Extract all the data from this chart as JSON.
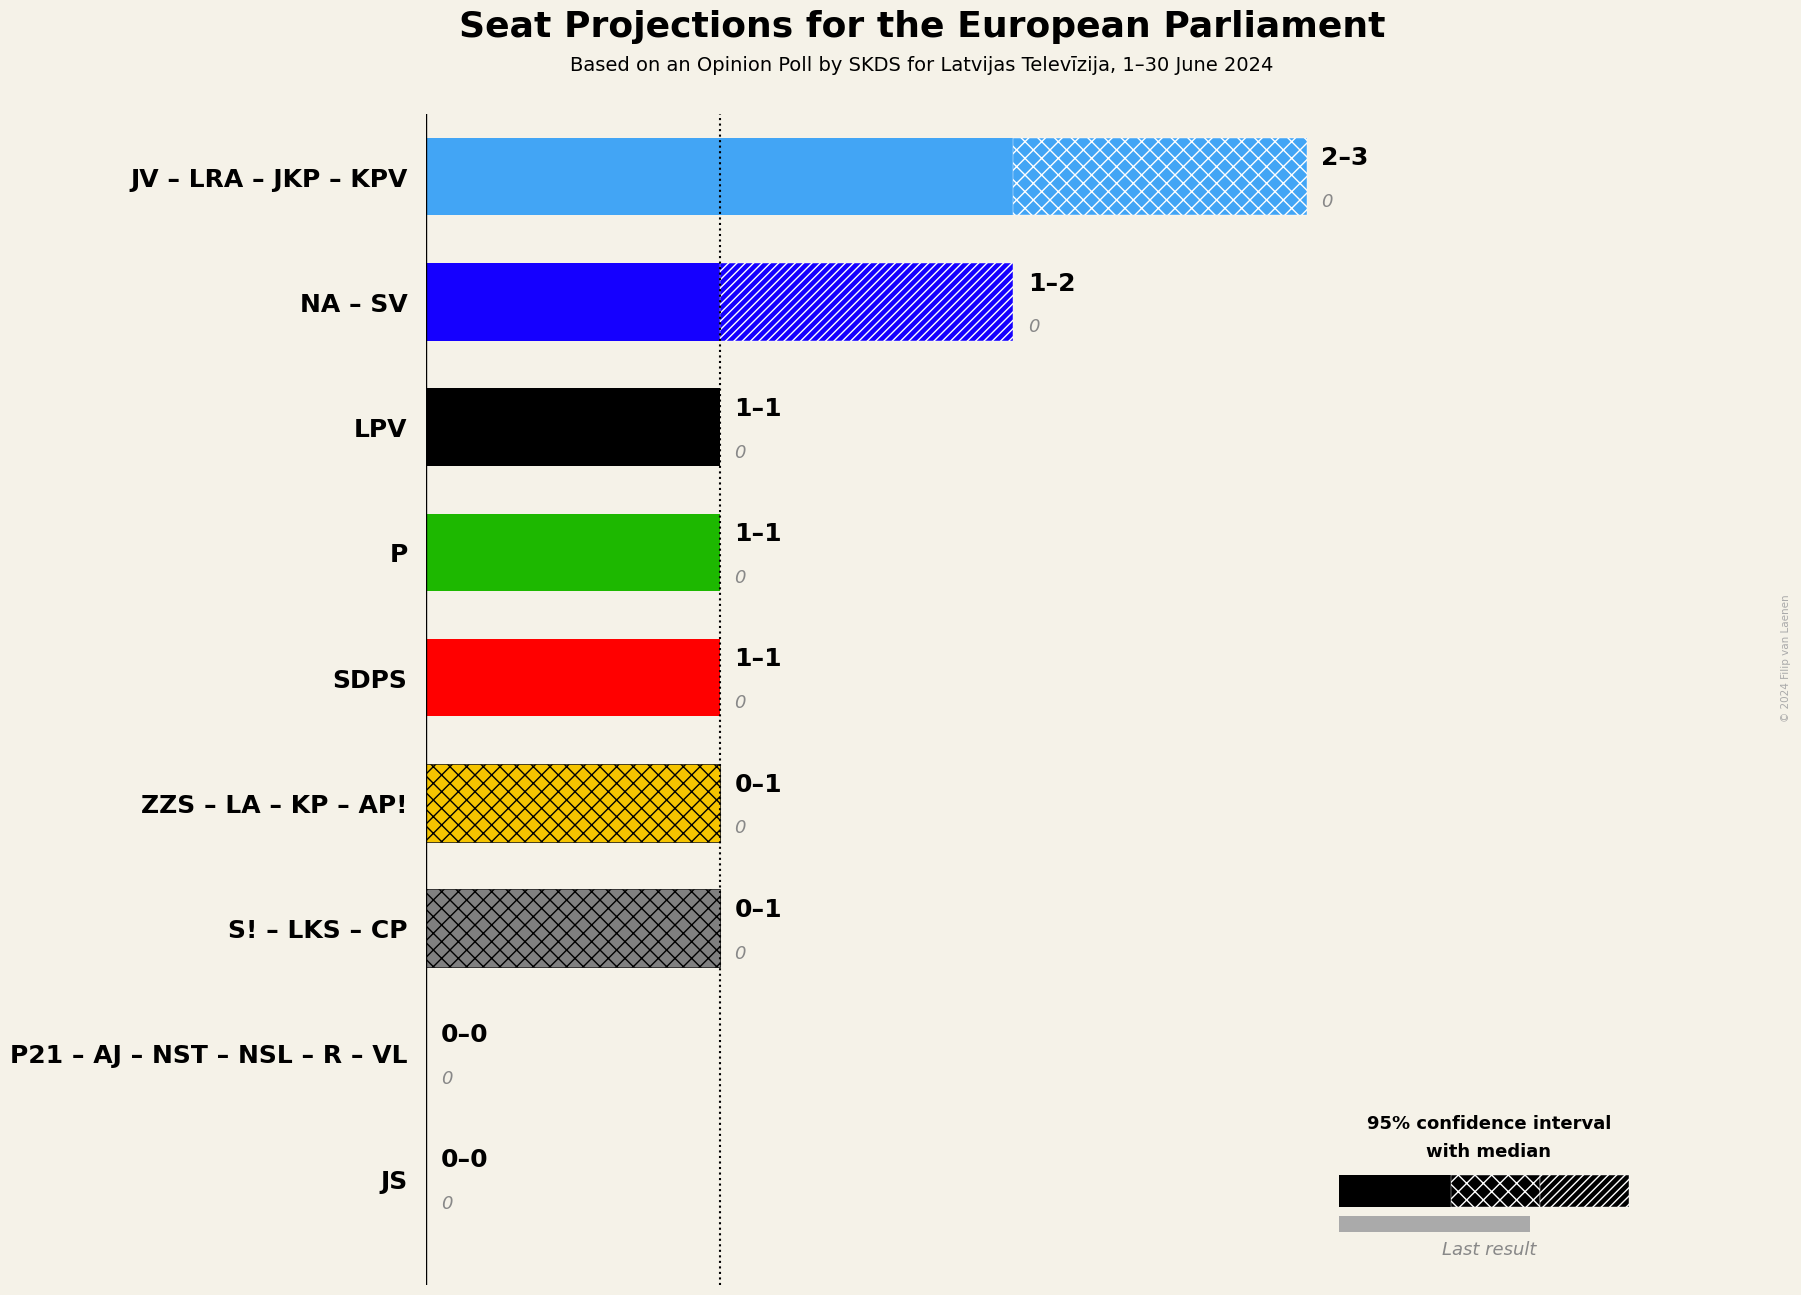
{
  "title": "Seat Projections for the European Parliament",
  "subtitle": "Based on an Opinion Poll by SKDS for Latvijas Televīzija, 1–30 June 2024",
  "copyright": "© 2024 Filip van Laenen",
  "background_color": "#f5f2e8",
  "parties": [
    "JV – LRA – JKP – KPV",
    "NA – SV",
    "LPV",
    "P",
    "SDPS",
    "ZZS – LA – KP – AP!",
    "S! – LKS – CP",
    "P21 – AJ – NST – NSL – R – VL",
    "JS"
  ],
  "median_values": [
    2,
    1,
    1,
    1,
    1,
    0,
    0,
    0,
    0
  ],
  "high_values": [
    3,
    2,
    1,
    1,
    1,
    1,
    1,
    0,
    0
  ],
  "last_results": [
    0,
    0,
    0,
    0,
    0,
    0,
    0,
    0,
    0
  ],
  "labels": [
    "2–3",
    "1–2",
    "1–1",
    "1–1",
    "1–1",
    "0–1",
    "0–1",
    "0–0",
    "0–0"
  ],
  "colors": [
    "#42a5f5",
    "#1500ff",
    "#000000",
    "#1db800",
    "#ff0000",
    "#f5c400",
    "#808080",
    "#f5f2e8",
    "#f5f2e8"
  ],
  "hatch_styles": [
    "xx",
    "////",
    "xx",
    "xx",
    "xx",
    "xx",
    "xx",
    "xx",
    "xx"
  ],
  "bar_height": 0.62,
  "xlim_max": 3.5,
  "dashed_line_x": 1.0,
  "title_fontsize": 26,
  "subtitle_fontsize": 14,
  "label_fontsize": 18,
  "tick_fontsize": 18
}
